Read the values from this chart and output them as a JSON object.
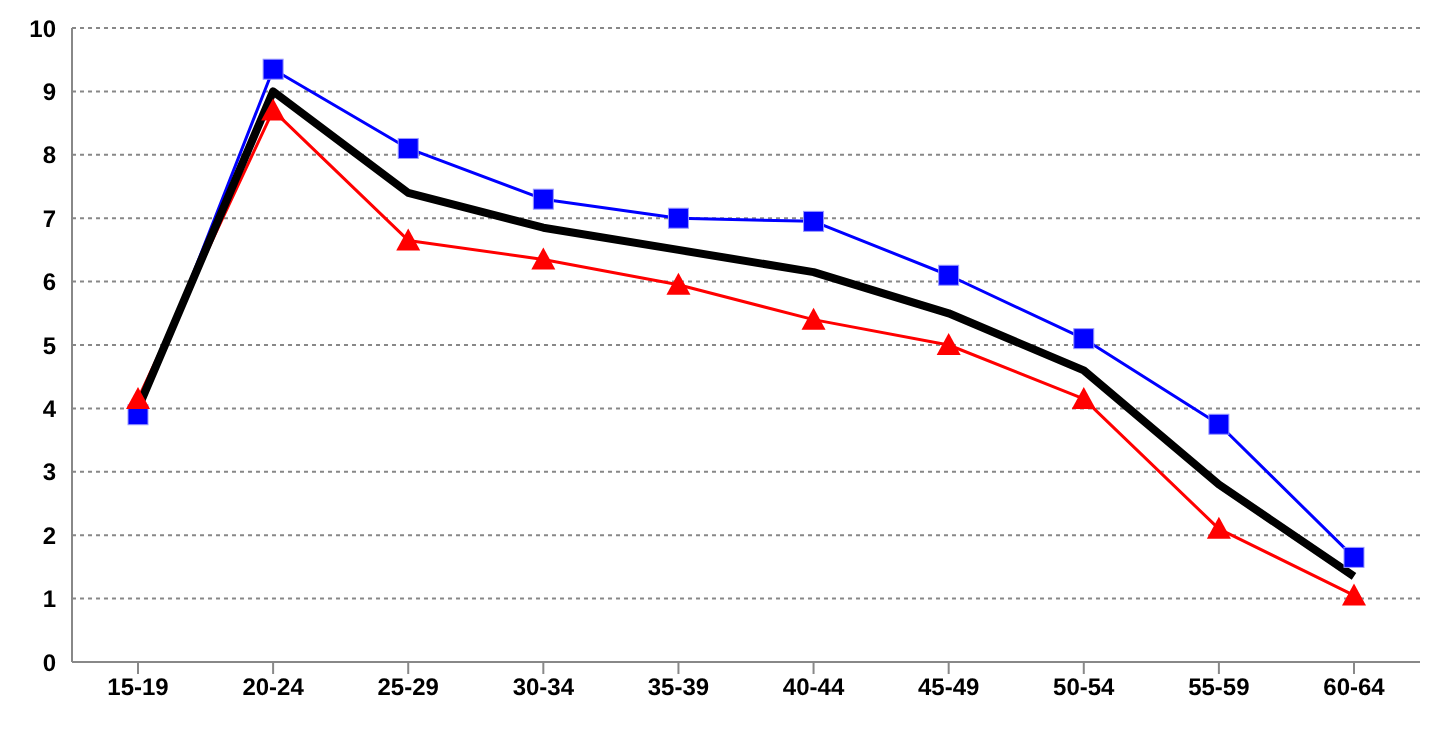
{
  "chart_data": {
    "type": "line",
    "categories": [
      "15-19",
      "20-24",
      "25-29",
      "30-34",
      "35-39",
      "40-44",
      "45-49",
      "50-54",
      "55-59",
      "60-64"
    ],
    "series": [
      {
        "color": "#0000ff",
        "marker": "square",
        "values": [
          3.9,
          9.35,
          8.1,
          7.3,
          7.0,
          6.95,
          6.1,
          5.1,
          3.75,
          1.65
        ]
      },
      {
        "color": "#ff0000",
        "marker": "triangle",
        "values": [
          4.15,
          8.7,
          6.65,
          6.35,
          5.95,
          5.4,
          5.0,
          4.15,
          2.1,
          1.05
        ]
      },
      {
        "color": "#000000",
        "marker": "none",
        "values": [
          4.0,
          9.0,
          7.4,
          6.85,
          6.5,
          6.15,
          5.5,
          4.6,
          2.8,
          1.35
        ]
      }
    ],
    "ylim": [
      0,
      10
    ],
    "yticks": [
      0,
      1,
      2,
      3,
      4,
      5,
      6,
      7,
      8,
      9,
      10
    ],
    "grid": "y",
    "legend": false
  }
}
